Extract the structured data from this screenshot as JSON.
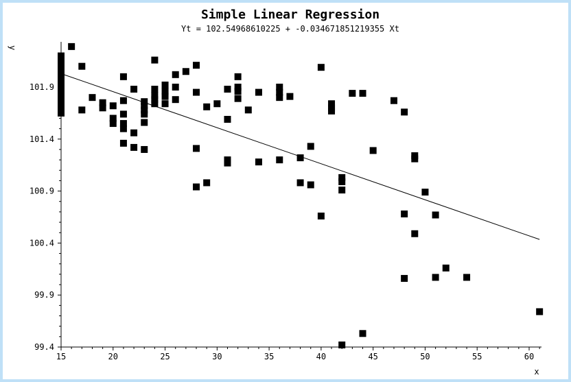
{
  "chart_data": {
    "type": "scatter",
    "title": "Simple Linear Regression",
    "subtitle": "Yt = 102.54968610225 + -0.034671851219355 Xt",
    "xlabel": "x",
    "ylabel": "y",
    "xlim": [
      15,
      61
    ],
    "ylim": [
      99.4,
      102.3
    ],
    "xticks": [
      15,
      20,
      25,
      30,
      35,
      40,
      45,
      50,
      55,
      60
    ],
    "yticks": [
      99.4,
      99.9,
      100.4,
      100.9,
      101.4,
      101.9
    ],
    "ytick_labels": [
      "99.4",
      "99.9",
      "100.4",
      "100.9",
      "101.4",
      "101.9"
    ],
    "regression": {
      "intercept": 102.54968610225,
      "slope": -0.034671851219355,
      "x_range": [
        15,
        61
      ]
    },
    "points": [
      [
        15,
        102.2
      ],
      [
        15,
        102.15
      ],
      [
        15,
        102.1
      ],
      [
        15,
        102.05
      ],
      [
        15,
        102.0
      ],
      [
        15,
        101.95
      ],
      [
        15,
        101.9
      ],
      [
        15,
        101.85
      ],
      [
        15,
        101.8
      ],
      [
        15,
        101.75
      ],
      [
        15,
        101.7
      ],
      [
        15,
        101.65
      ],
      [
        16,
        102.29
      ],
      [
        17,
        102.1
      ],
      [
        17,
        101.68
      ],
      [
        18,
        101.8
      ],
      [
        19,
        101.75
      ],
      [
        19,
        101.7
      ],
      [
        20,
        101.72
      ],
      [
        20,
        101.6
      ],
      [
        20,
        101.55
      ],
      [
        21,
        102.0
      ],
      [
        21,
        101.77
      ],
      [
        21,
        101.64
      ],
      [
        21,
        101.55
      ],
      [
        21,
        101.5
      ],
      [
        21,
        101.36
      ],
      [
        22,
        101.88
      ],
      [
        22,
        101.46
      ],
      [
        22,
        101.32
      ],
      [
        23,
        101.76
      ],
      [
        23,
        101.72
      ],
      [
        23,
        101.68
      ],
      [
        23,
        101.64
      ],
      [
        23,
        101.56
      ],
      [
        23,
        101.3
      ],
      [
        24,
        102.16
      ],
      [
        24,
        101.88
      ],
      [
        24,
        101.82
      ],
      [
        24,
        101.78
      ],
      [
        24,
        101.74
      ],
      [
        25,
        101.92
      ],
      [
        25,
        101.86
      ],
      [
        25,
        101.81
      ],
      [
        25,
        101.74
      ],
      [
        26,
        102.02
      ],
      [
        26,
        101.9
      ],
      [
        26,
        101.78
      ],
      [
        27,
        102.05
      ],
      [
        28,
        102.11
      ],
      [
        28,
        101.85
      ],
      [
        28,
        101.31
      ],
      [
        28,
        100.94
      ],
      [
        29,
        101.71
      ],
      [
        29,
        100.98
      ],
      [
        30,
        101.74
      ],
      [
        31,
        101.88
      ],
      [
        31,
        101.59
      ],
      [
        31,
        101.2
      ],
      [
        31,
        101.17
      ],
      [
        32,
        102.0
      ],
      [
        32,
        101.9
      ],
      [
        32,
        101.86
      ],
      [
        32,
        101.79
      ],
      [
        33,
        101.68
      ],
      [
        34,
        101.85
      ],
      [
        34,
        101.18
      ],
      [
        36,
        101.9
      ],
      [
        36,
        101.85
      ],
      [
        36,
        101.8
      ],
      [
        36,
        101.2
      ],
      [
        37,
        101.81
      ],
      [
        38,
        101.22
      ],
      [
        38,
        100.98
      ],
      [
        39,
        101.33
      ],
      [
        39,
        100.96
      ],
      [
        40,
        102.09
      ],
      [
        40,
        100.66
      ],
      [
        41,
        101.74
      ],
      [
        41,
        101.7
      ],
      [
        41,
        101.67
      ],
      [
        42,
        101.03
      ],
      [
        42,
        100.99
      ],
      [
        42,
        100.91
      ],
      [
        42,
        99.42
      ],
      [
        43,
        101.84
      ],
      [
        44,
        101.84
      ],
      [
        44,
        99.53
      ],
      [
        45,
        101.29
      ],
      [
        47,
        101.77
      ],
      [
        48,
        101.66
      ],
      [
        48,
        100.68
      ],
      [
        48,
        100.06
      ],
      [
        49,
        101.24
      ],
      [
        49,
        101.21
      ],
      [
        49,
        100.49
      ],
      [
        50,
        100.89
      ],
      [
        51,
        100.67
      ],
      [
        51,
        100.07
      ],
      [
        52,
        100.16
      ],
      [
        54,
        100.07
      ],
      [
        61,
        99.74
      ]
    ]
  }
}
